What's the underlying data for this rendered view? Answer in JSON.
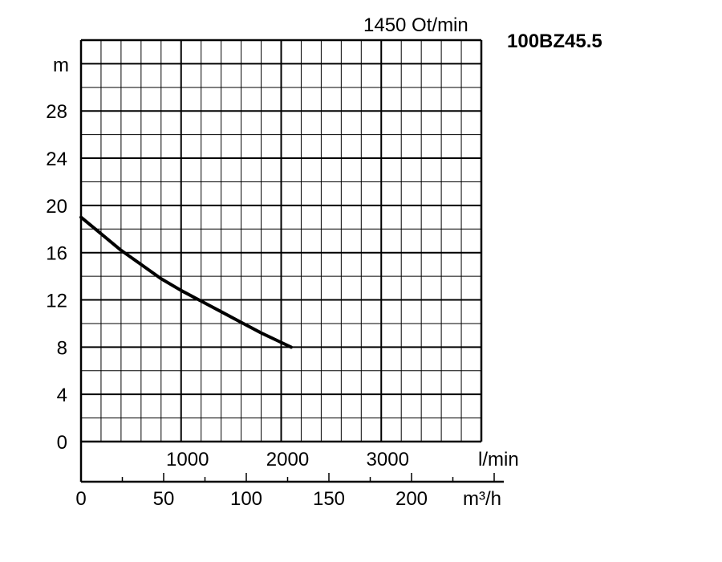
{
  "chart_data": {
    "type": "line",
    "title": "1450 Ot/min",
    "model": "100BZ45.5",
    "ylabel": "m",
    "ylim": [
      0,
      34
    ],
    "yticks": [
      "0",
      "4",
      "8",
      "12",
      "16",
      "20",
      "24",
      "28"
    ],
    "xlabel_lmin": "l/min",
    "xlim_lmin": [
      0,
      4000
    ],
    "xticks_lmin": [
      "1000",
      "2000",
      "3000"
    ],
    "xlabel_m3h": "m³/h",
    "xticks_m3h": [
      "0",
      "50",
      "100",
      "150",
      "200"
    ],
    "grid": true,
    "series": [
      {
        "x_lmin": [
          0,
          200,
          400,
          600,
          800,
          1000,
          1200,
          1400,
          1600,
          1800,
          2000,
          2100
        ],
        "y_m": [
          19,
          17.6,
          16.2,
          15.0,
          13.8,
          12.8,
          11.9,
          11.0,
          10.1,
          9.2,
          8.4,
          8.0
        ]
      }
    ]
  }
}
